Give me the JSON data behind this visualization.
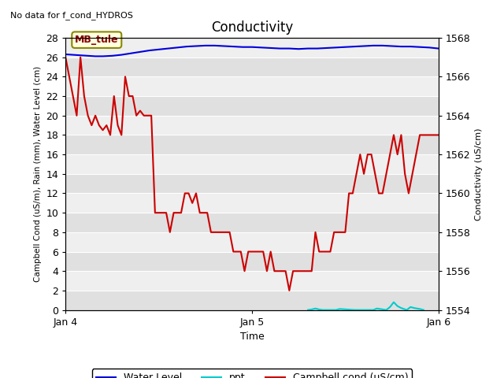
{
  "title": "Conductivity",
  "subtitle": "No data for f_cond_HYDROS",
  "xlabel": "Time",
  "ylabel_left": "Campbell Cond (uS/m), Rain (mm), Water Level (cm)",
  "ylabel_right": "Conductivity (uS/cm)",
  "annotation_box": "MB_tule",
  "xlim_days": [
    0,
    2.0
  ],
  "ylim_left": [
    0,
    28
  ],
  "ylim_right": [
    1554,
    1568
  ],
  "yticks_left": [
    0,
    2,
    4,
    6,
    8,
    10,
    12,
    14,
    16,
    18,
    20,
    22,
    24,
    26,
    28
  ],
  "yticks_right": [
    1554,
    1556,
    1558,
    1560,
    1562,
    1564,
    1566,
    1568
  ],
  "xtick_labels": [
    "Jan 4",
    "Jan 5",
    "Jan 6"
  ],
  "xtick_positions": [
    0.0,
    1.0,
    2.0
  ],
  "background_color": "#e8e8e8",
  "water_level_color": "#0000dd",
  "ppt_color": "#00cccc",
  "campbell_color": "#cc0000",
  "water_level_x": [
    0.0,
    0.04,
    0.08,
    0.12,
    0.16,
    0.2,
    0.25,
    0.3,
    0.35,
    0.4,
    0.45,
    0.5,
    0.55,
    0.6,
    0.65,
    0.7,
    0.75,
    0.8,
    0.85,
    0.9,
    0.95,
    1.0,
    1.05,
    1.1,
    1.15,
    1.2,
    1.25,
    1.3,
    1.35,
    1.4,
    1.45,
    1.5,
    1.55,
    1.6,
    1.65,
    1.7,
    1.75,
    1.8,
    1.85,
    1.9,
    1.95,
    2.0
  ],
  "water_level_y": [
    26.3,
    26.25,
    26.2,
    26.15,
    26.1,
    26.1,
    26.15,
    26.25,
    26.4,
    26.55,
    26.7,
    26.8,
    26.9,
    27.0,
    27.1,
    27.15,
    27.2,
    27.2,
    27.15,
    27.1,
    27.05,
    27.05,
    27.0,
    26.95,
    26.9,
    26.9,
    26.85,
    26.9,
    26.9,
    26.95,
    27.0,
    27.05,
    27.1,
    27.15,
    27.2,
    27.2,
    27.15,
    27.1,
    27.1,
    27.05,
    27.0,
    26.9
  ],
  "ppt_x": [
    1.3,
    1.32,
    1.34,
    1.36,
    1.38,
    1.45,
    1.47,
    1.55,
    1.57,
    1.65,
    1.67,
    1.72,
    1.74,
    1.76,
    1.78,
    1.8,
    1.83,
    1.85,
    1.87,
    1.9,
    1.92
  ],
  "ppt_y": [
    0.0,
    0.05,
    0.15,
    0.05,
    0.0,
    0.0,
    0.1,
    0.0,
    0.0,
    0.0,
    0.15,
    0.0,
    0.3,
    0.8,
    0.4,
    0.2,
    0.0,
    0.3,
    0.2,
    0.1,
    0.0
  ],
  "campbell_x": [
    0.0,
    0.02,
    0.04,
    0.06,
    0.08,
    0.1,
    0.12,
    0.14,
    0.16,
    0.18,
    0.2,
    0.22,
    0.24,
    0.26,
    0.28,
    0.3,
    0.32,
    0.34,
    0.36,
    0.38,
    0.4,
    0.42,
    0.44,
    0.46,
    0.48,
    0.5,
    0.52,
    0.54,
    0.56,
    0.58,
    0.6,
    0.62,
    0.64,
    0.66,
    0.68,
    0.7,
    0.72,
    0.74,
    0.76,
    0.78,
    0.8,
    0.82,
    0.84,
    0.86,
    0.88,
    0.9,
    0.92,
    0.94,
    0.96,
    0.98,
    1.0,
    1.02,
    1.04,
    1.06,
    1.08,
    1.1,
    1.12,
    1.14,
    1.16,
    1.18,
    1.2,
    1.22,
    1.24,
    1.26,
    1.28,
    1.3,
    1.32,
    1.34,
    1.36,
    1.38,
    1.4,
    1.42,
    1.44,
    1.46,
    1.48,
    1.5,
    1.52,
    1.54,
    1.56,
    1.58,
    1.6,
    1.62,
    1.64,
    1.66,
    1.68,
    1.7,
    1.72,
    1.74,
    1.76,
    1.78,
    1.8,
    1.82,
    1.84,
    1.86,
    1.88,
    1.9,
    1.92,
    1.94,
    1.96,
    1.98,
    2.0
  ],
  "campbell_y": [
    26.0,
    24.0,
    22.0,
    20.0,
    26.0,
    22.0,
    20.0,
    19.0,
    20.0,
    19.0,
    18.5,
    19.0,
    18.0,
    22.0,
    19.0,
    18.0,
    24.0,
    22.0,
    22.0,
    20.0,
    20.5,
    20.0,
    20.0,
    20.0,
    10.0,
    10.0,
    10.0,
    10.0,
    8.0,
    10.0,
    10.0,
    10.0,
    12.0,
    12.0,
    11.0,
    12.0,
    10.0,
    10.0,
    10.0,
    8.0,
    8.0,
    8.0,
    8.0,
    8.0,
    8.0,
    6.0,
    6.0,
    6.0,
    4.0,
    6.0,
    6.0,
    6.0,
    6.0,
    6.0,
    4.0,
    6.0,
    4.0,
    4.0,
    4.0,
    4.0,
    2.0,
    4.0,
    4.0,
    4.0,
    4.0,
    4.0,
    4.0,
    8.0,
    6.0,
    6.0,
    6.0,
    6.0,
    8.0,
    8.0,
    8.0,
    8.0,
    12.0,
    12.0,
    14.0,
    16.0,
    14.0,
    16.0,
    16.0,
    14.0,
    12.0,
    12.0,
    14.0,
    16.0,
    18.0,
    16.0,
    18.0,
    14.0,
    12.0,
    14.0,
    16.0,
    18.0,
    18.0,
    18.0,
    18.0,
    18.0,
    18.0
  ]
}
